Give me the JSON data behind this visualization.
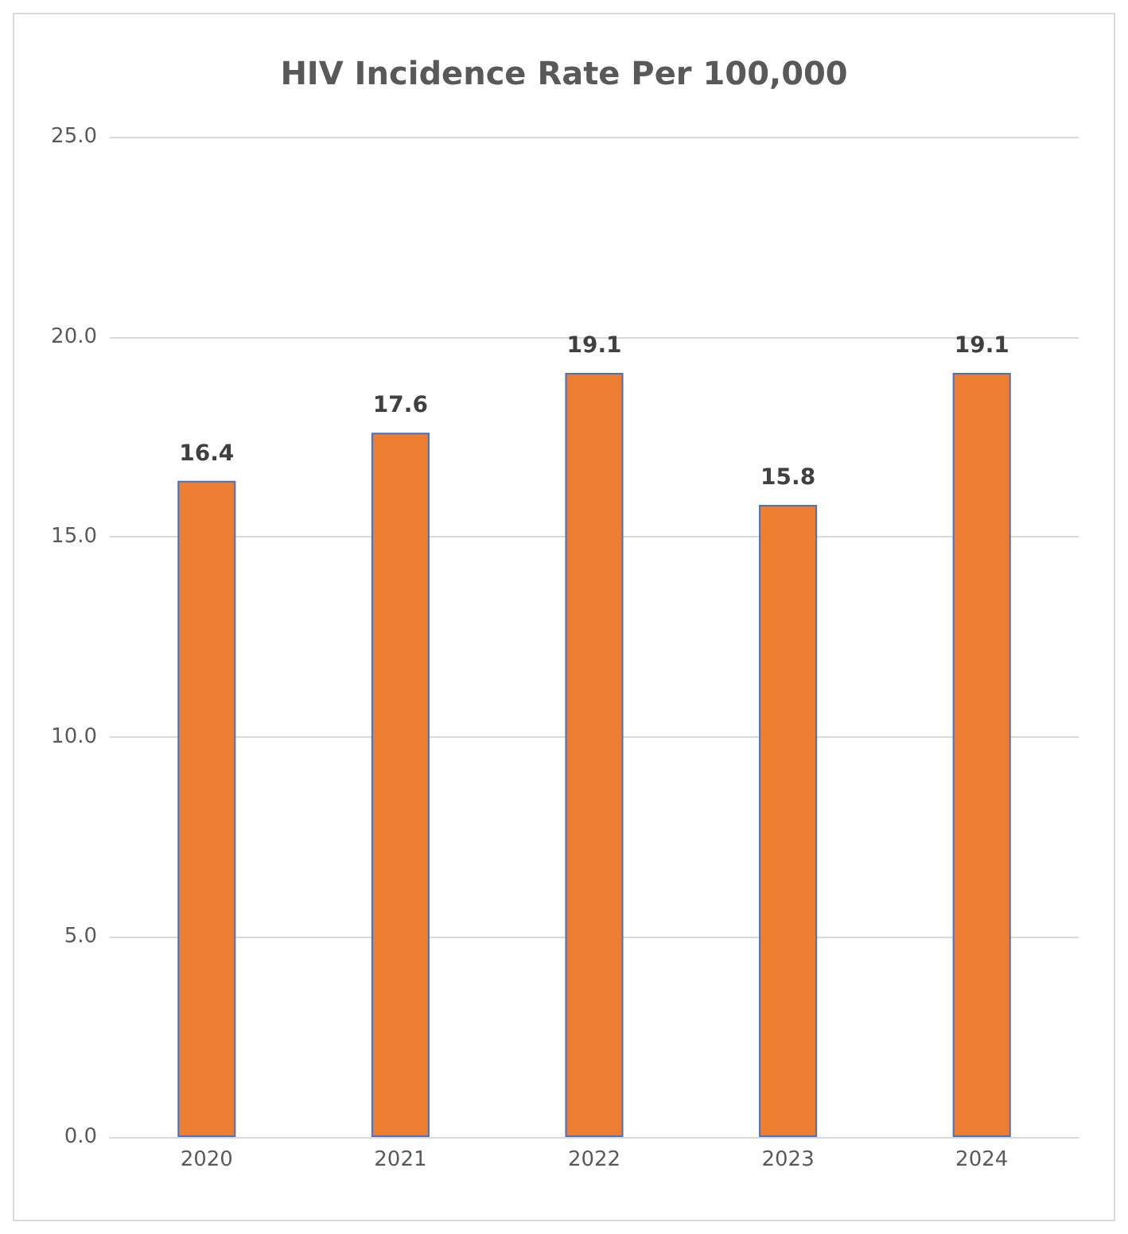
{
  "chart_data": {
    "type": "bar",
    "title": "HIV Incidence Rate Per 100,000",
    "categories": [
      "2020",
      "2021",
      "2022",
      "2023",
      "2024"
    ],
    "values": [
      16.4,
      17.6,
      19.1,
      15.8,
      19.1
    ],
    "color": "#ed7d31",
    "ylim": [
      0,
      25
    ],
    "yticks": [
      {
        "value": 0,
        "label": "0.0"
      },
      {
        "value": 5,
        "label": "5.0"
      },
      {
        "value": 10,
        "label": "10.0"
      },
      {
        "value": 15,
        "label": "15.0"
      },
      {
        "value": 20,
        "label": "20.0"
      },
      {
        "value": 25,
        "label": "25.0"
      }
    ],
    "grid": "y",
    "data_labels": true
  }
}
